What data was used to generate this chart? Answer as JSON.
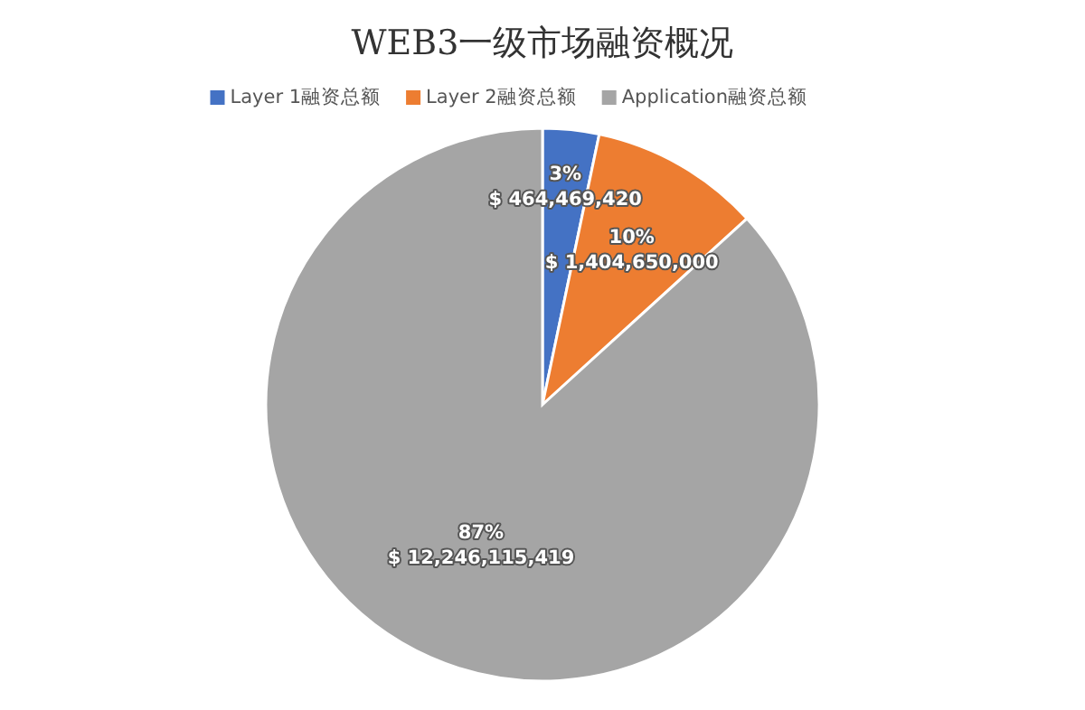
{
  "chart_data": {
    "type": "pie",
    "title": "WEB3一级市场融资概况",
    "categories": [
      "Layer 1融资总额",
      "Layer 2融资总额",
      "Application融资总额"
    ],
    "values": [
      464469420,
      1404650000,
      12246115419
    ],
    "value_labels": [
      "3%\n$ 464,469,420",
      "10%\n$ 1,404,650,000",
      "87%\n$ 12,246,115,419"
    ],
    "colors": [
      "#4472c4",
      "#ed7d31",
      "#a5a5a5"
    ],
    "legend": "top"
  }
}
